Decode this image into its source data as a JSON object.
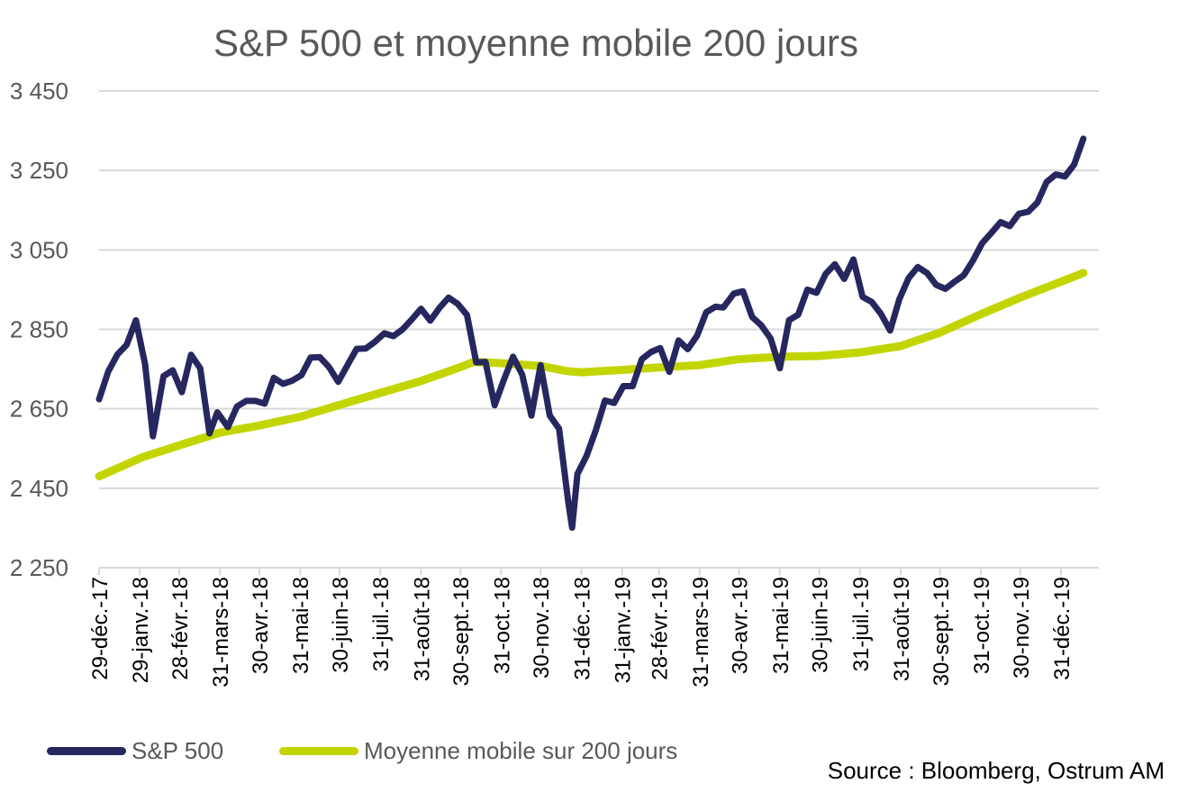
{
  "chart_data": {
    "type": "line",
    "title": "S&P 500 et moyenne mobile 200 jours",
    "xlabel": "",
    "ylabel": "",
    "ylim": [
      2250,
      3450
    ],
    "y_ticks": [
      2250,
      2450,
      2650,
      2850,
      3050,
      3250,
      3450
    ],
    "y_tick_labels": [
      "2 250",
      "2 450",
      "2 650",
      "2 850",
      "3 050",
      "3 250",
      "3 450"
    ],
    "x_range": [
      "2017-12-29",
      "2020-01-17"
    ],
    "x_ticks": [
      "2017-12-29",
      "2018-01-29",
      "2018-02-28",
      "2018-03-31",
      "2018-04-30",
      "2018-05-31",
      "2018-06-30",
      "2018-07-31",
      "2018-08-31",
      "2018-09-30",
      "2018-10-31",
      "2018-11-30",
      "2018-12-31",
      "2019-01-31",
      "2019-02-28",
      "2019-03-31",
      "2019-04-30",
      "2019-05-31",
      "2019-06-30",
      "2019-07-31",
      "2019-08-31",
      "2019-09-30",
      "2019-10-31",
      "2019-11-30",
      "2019-12-31"
    ],
    "x_tick_labels": [
      "29-déc.-17",
      "29-janv.-18",
      "28-févr.-18",
      "31-mars-18",
      "30-avr.-18",
      "31-mai-18",
      "30-juin-18",
      "31-juil.-18",
      "31-août-18",
      "30-sept.-18",
      "31-oct.-18",
      "30-nov.-18",
      "31-déc.-18",
      "31-janv.-19",
      "28-févr.-19",
      "31-mars-19",
      "30-avr.-19",
      "31-mai-19",
      "30-juin-19",
      "31-juil.-19",
      "31-août-19",
      "30-sept.-19",
      "31-oct.-19",
      "30-nov.-19",
      "31-déc.-19"
    ],
    "grid": true,
    "legend_position": "bottom-left",
    "series": [
      {
        "name": "S&P 500",
        "color": "#27275f",
        "x": [
          "2017-12-29",
          "2018-01-05",
          "2018-01-12",
          "2018-01-19",
          "2018-01-26",
          "2018-02-02",
          "2018-02-08",
          "2018-02-16",
          "2018-02-23",
          "2018-03-02",
          "2018-03-09",
          "2018-03-16",
          "2018-03-23",
          "2018-03-29",
          "2018-04-06",
          "2018-04-13",
          "2018-04-20",
          "2018-04-27",
          "2018-05-04",
          "2018-05-11",
          "2018-05-18",
          "2018-05-25",
          "2018-06-01",
          "2018-06-08",
          "2018-06-15",
          "2018-06-22",
          "2018-06-29",
          "2018-07-06",
          "2018-07-13",
          "2018-07-20",
          "2018-07-27",
          "2018-08-03",
          "2018-08-10",
          "2018-08-17",
          "2018-08-24",
          "2018-08-31",
          "2018-09-07",
          "2018-09-14",
          "2018-09-21",
          "2018-09-28",
          "2018-10-05",
          "2018-10-12",
          "2018-10-19",
          "2018-10-26",
          "2018-11-02",
          "2018-11-09",
          "2018-11-16",
          "2018-11-23",
          "2018-11-30",
          "2018-12-07",
          "2018-12-14",
          "2018-12-21",
          "2018-12-24",
          "2018-12-28",
          "2019-01-04",
          "2019-01-11",
          "2019-01-18",
          "2019-01-25",
          "2019-02-01",
          "2019-02-08",
          "2019-02-15",
          "2019-02-22",
          "2019-03-01",
          "2019-03-08",
          "2019-03-15",
          "2019-03-22",
          "2019-03-29",
          "2019-04-05",
          "2019-04-12",
          "2019-04-18",
          "2019-04-26",
          "2019-05-03",
          "2019-05-10",
          "2019-05-17",
          "2019-05-24",
          "2019-05-31",
          "2019-06-07",
          "2019-06-14",
          "2019-06-21",
          "2019-06-28",
          "2019-07-05",
          "2019-07-12",
          "2019-07-19",
          "2019-07-26",
          "2019-08-02",
          "2019-08-09",
          "2019-08-16",
          "2019-08-23",
          "2019-08-30",
          "2019-09-06",
          "2019-09-13",
          "2019-09-20",
          "2019-09-27",
          "2019-10-04",
          "2019-10-11",
          "2019-10-18",
          "2019-10-25",
          "2019-11-01",
          "2019-11-08",
          "2019-11-15",
          "2019-11-22",
          "2019-11-29",
          "2019-12-06",
          "2019-12-13",
          "2019-12-20",
          "2019-12-27",
          "2020-01-03",
          "2020-01-10",
          "2020-01-17"
        ],
        "values": [
          2674,
          2744,
          2787,
          2811,
          2873,
          2762,
          2581,
          2732,
          2747,
          2692,
          2786,
          2752,
          2588,
          2641,
          2604,
          2656,
          2670,
          2670,
          2663,
          2728,
          2713,
          2721,
          2735,
          2779,
          2780,
          2755,
          2718,
          2760,
          2801,
          2802,
          2819,
          2840,
          2833,
          2850,
          2875,
          2902,
          2872,
          2904,
          2930,
          2914,
          2886,
          2767,
          2768,
          2659,
          2723,
          2781,
          2736,
          2633,
          2760,
          2633,
          2600,
          2416,
          2351,
          2486,
          2532,
          2596,
          2671,
          2665,
          2707,
          2707,
          2775,
          2793,
          2803,
          2743,
          2822,
          2800,
          2834,
          2893,
          2907,
          2905,
          2940,
          2946,
          2881,
          2860,
          2827,
          2752,
          2873,
          2887,
          2950,
          2942,
          2990,
          3014,
          2977,
          3026,
          2932,
          2919,
          2889,
          2847,
          2926,
          2979,
          3007,
          2992,
          2962,
          2952,
          2970,
          2986,
          3023,
          3067,
          3093,
          3120,
          3110,
          3141,
          3146,
          3169,
          3221,
          3240,
          3235,
          3265,
          3330
        ]
      },
      {
        "name": "Moyenne mobile sur 200 jours",
        "color": "#c3d500",
        "x": [
          "2017-12-29",
          "2018-01-31",
          "2018-02-28",
          "2018-03-31",
          "2018-04-30",
          "2018-05-31",
          "2018-06-30",
          "2018-07-31",
          "2018-08-31",
          "2018-09-30",
          "2018-10-10",
          "2018-10-31",
          "2018-11-30",
          "2018-12-20",
          "2018-12-31",
          "2019-01-31",
          "2019-02-28",
          "2019-03-31",
          "2019-04-30",
          "2019-05-31",
          "2019-06-30",
          "2019-07-31",
          "2019-08-31",
          "2019-09-30",
          "2019-10-31",
          "2019-11-30",
          "2019-12-31",
          "2020-01-17"
        ],
        "values": [
          2480,
          2528,
          2558,
          2590,
          2608,
          2630,
          2660,
          2690,
          2720,
          2755,
          2768,
          2765,
          2758,
          2745,
          2742,
          2748,
          2754,
          2760,
          2775,
          2781,
          2783,
          2792,
          2808,
          2842,
          2888,
          2930,
          2970,
          2992
        ]
      }
    ]
  },
  "legend": {
    "sp500_label": "S&P 500",
    "ma_label": "Moyenne mobile sur 200 jours"
  },
  "source": "Source : Bloomberg, Ostrum AM"
}
